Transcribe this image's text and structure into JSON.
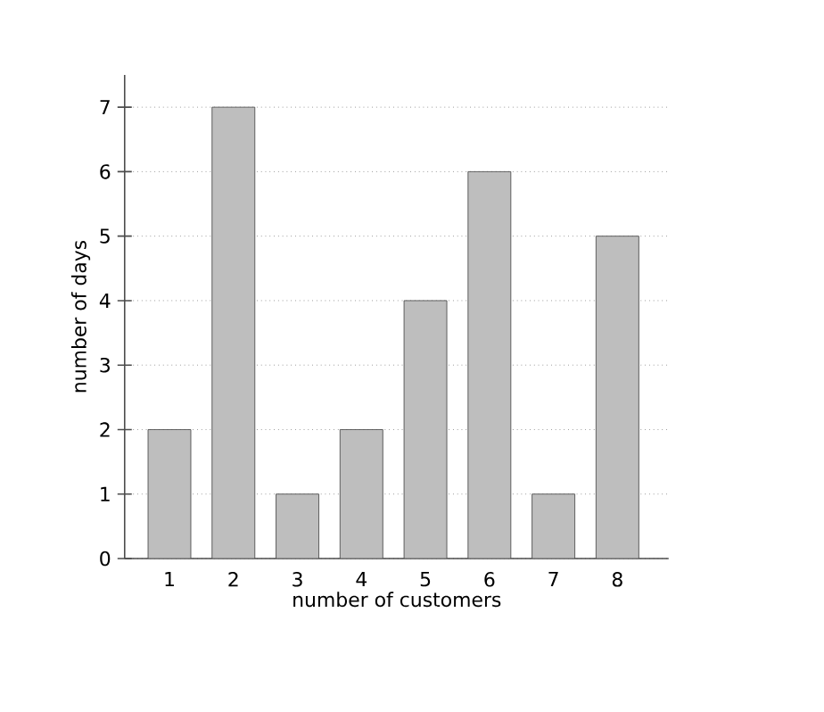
{
  "chart_data": {
    "type": "bar",
    "xlabel": "number of customers",
    "ylabel": "number of days",
    "categories": [
      "1",
      "2",
      "3",
      "4",
      "5",
      "6",
      "7",
      "8"
    ],
    "values": [
      2,
      7,
      1,
      2,
      4,
      6,
      1,
      5
    ],
    "color": "#bebebe",
    "ylim": [
      0,
      7.5
    ],
    "yticks": [
      0,
      1,
      2,
      3,
      4,
      5,
      6,
      7
    ],
    "grid": "y"
  }
}
